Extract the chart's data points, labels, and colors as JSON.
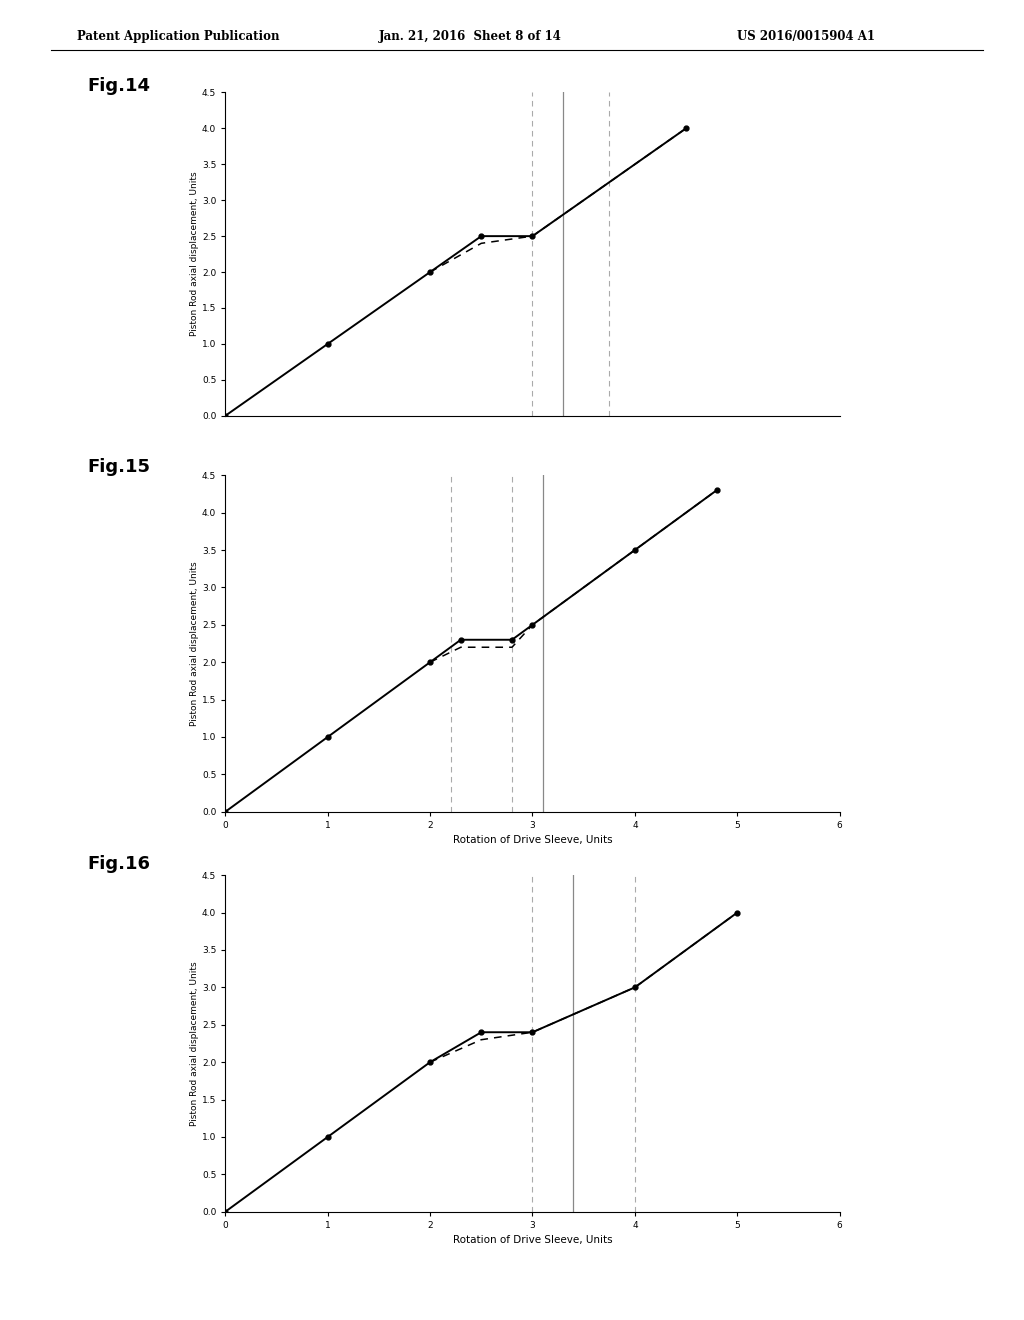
{
  "header_left": "Patent Application Publication",
  "header_center": "Jan. 21, 2016  Sheet 8 of 14",
  "header_right": "US 2016/0015904 A1",
  "background_color": "#ffffff",
  "figures": [
    {
      "label": "Fig.14",
      "ylabel": "Piston Rod axial displacement, Units",
      "xlabel": "",
      "xlim": [
        0,
        6
      ],
      "ylim": [
        0,
        4.5
      ],
      "xticks": [],
      "yticks": [
        0,
        0.5,
        1,
        1.5,
        2,
        2.5,
        3,
        3.5,
        4,
        4.5
      ],
      "solid_line": [
        [
          0,
          0
        ],
        [
          1,
          1
        ],
        [
          2,
          2
        ],
        [
          2.5,
          2.5
        ],
        [
          3.0,
          2.5
        ],
        [
          4.5,
          4.0
        ]
      ],
      "dashed_line": [
        [
          2.0,
          2.0
        ],
        [
          2.5,
          2.4
        ],
        [
          3.0,
          2.5
        ],
        [
          3.5,
          3.0
        ],
        [
          4.5,
          4.0
        ]
      ],
      "vlines": [
        3.0,
        3.3,
        3.75
      ],
      "vline_styles": [
        "dashed",
        "solid",
        "dashed"
      ],
      "show_xlabel": false,
      "dots_solid": [
        [
          0,
          0
        ],
        [
          1,
          1
        ],
        [
          2,
          2
        ],
        [
          2.5,
          2.5
        ],
        [
          3.0,
          2.5
        ],
        [
          4.5,
          4.0
        ]
      ],
      "dots_dashed": [
        [
          2.0,
          2.0
        ],
        [
          2.5,
          2.4
        ],
        [
          3.0,
          2.5
        ],
        [
          3.5,
          3.0
        ],
        [
          4.5,
          4.0
        ]
      ]
    },
    {
      "label": "Fig.15",
      "ylabel": "Piston Rod axial displacement, Units",
      "xlabel": "Rotation of Drive Sleeve, Units",
      "xlim": [
        0,
        6
      ],
      "ylim": [
        0,
        4.5
      ],
      "xticks": [
        0,
        1,
        2,
        3,
        4,
        5,
        6
      ],
      "yticks": [
        0,
        0.5,
        1,
        1.5,
        2,
        2.5,
        3,
        3.5,
        4,
        4.5
      ],
      "solid_line": [
        [
          0,
          0
        ],
        [
          1,
          1
        ],
        [
          2,
          2
        ],
        [
          2.3,
          2.3
        ],
        [
          2.8,
          2.3
        ],
        [
          3.0,
          2.5
        ],
        [
          4.0,
          3.5
        ],
        [
          4.8,
          4.3
        ]
      ],
      "dashed_line": [
        [
          2.0,
          2.0
        ],
        [
          2.3,
          2.2
        ],
        [
          2.8,
          2.2
        ],
        [
          3.0,
          2.5
        ],
        [
          4.0,
          3.5
        ],
        [
          4.8,
          4.3
        ]
      ],
      "vlines": [
        2.2,
        2.8,
        3.1
      ],
      "vline_styles": [
        "dashed",
        "dashed",
        "solid"
      ],
      "show_xlabel": true,
      "dots_solid": [
        [
          0,
          0
        ],
        [
          1,
          1
        ],
        [
          2,
          2
        ],
        [
          2.3,
          2.3
        ],
        [
          2.8,
          2.3
        ],
        [
          3.0,
          2.5
        ],
        [
          4.0,
          3.5
        ],
        [
          4.8,
          4.3
        ]
      ],
      "dots_dashed": [
        [
          2.0,
          2.0
        ],
        [
          2.3,
          2.2
        ],
        [
          2.8,
          2.2
        ],
        [
          3.0,
          2.5
        ],
        [
          4.0,
          3.5
        ],
        [
          4.8,
          4.3
        ]
      ]
    },
    {
      "label": "Fig.16",
      "ylabel": "Piston Rod axial displacement, Units",
      "xlabel": "Rotation of Drive Sleeve, Units",
      "xlim": [
        0,
        6
      ],
      "ylim": [
        0,
        4.5
      ],
      "xticks": [
        0,
        1,
        2,
        3,
        4,
        5,
        6
      ],
      "yticks": [
        0,
        0.5,
        1,
        1.5,
        2,
        2.5,
        3,
        3.5,
        4,
        4.5
      ],
      "solid_line": [
        [
          0,
          0
        ],
        [
          1,
          1
        ],
        [
          2,
          2
        ],
        [
          2.5,
          2.4
        ],
        [
          3.0,
          2.4
        ],
        [
          4.0,
          3.0
        ],
        [
          5.0,
          4.0
        ]
      ],
      "dashed_line": [
        [
          2.0,
          2.0
        ],
        [
          2.5,
          2.3
        ],
        [
          3.0,
          2.4
        ],
        [
          4.0,
          3.0
        ],
        [
          5.0,
          4.0
        ]
      ],
      "vlines": [
        3.0,
        3.4,
        4.0
      ],
      "vline_styles": [
        "dashed",
        "solid",
        "dashed"
      ],
      "show_xlabel": true,
      "dots_solid": [
        [
          0,
          0
        ],
        [
          1,
          1
        ],
        [
          2,
          2
        ],
        [
          2.5,
          2.4
        ],
        [
          3.0,
          2.4
        ],
        [
          4.0,
          3.0
        ],
        [
          5.0,
          4.0
        ]
      ],
      "dots_dashed": [
        [
          2.0,
          2.0
        ],
        [
          2.5,
          2.3
        ],
        [
          3.0,
          2.4
        ],
        [
          4.0,
          3.0
        ],
        [
          5.0,
          4.0
        ]
      ]
    }
  ]
}
